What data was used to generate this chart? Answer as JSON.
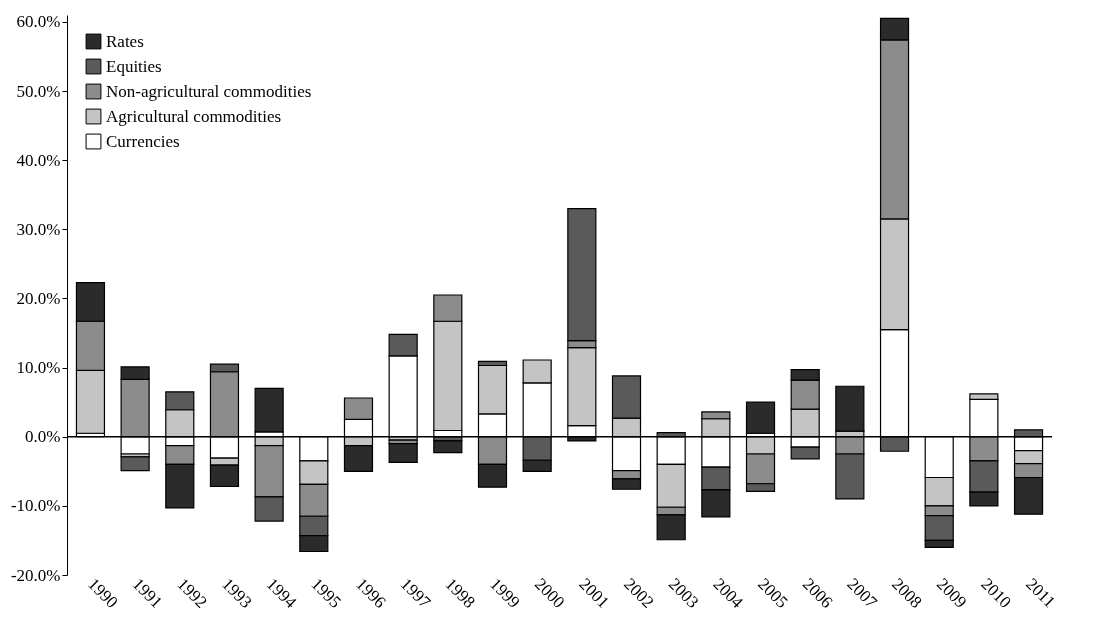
{
  "chart_data": {
    "type": "bar",
    "stacked": true,
    "categories": [
      "1990",
      "1991",
      "1992",
      "1993",
      "1994",
      "1995",
      "1996",
      "1997",
      "1998",
      "1999",
      "2000",
      "2001",
      "2002",
      "2003",
      "2004",
      "2005",
      "2006",
      "2007",
      "2008",
      "2009",
      "2010",
      "2011"
    ],
    "series": [
      {
        "name": "Currencies",
        "color": "#ffffff",
        "values": [
          0.5,
          -2.5,
          -1.3,
          -3.1,
          0.7,
          -3.5,
          2.5,
          11.7,
          0.9,
          3.3,
          7.8,
          1.6,
          -4.9,
          -4.0,
          -4.4,
          0.5,
          -1.5,
          null,
          15.5,
          -5.9,
          5.4,
          -2.0
        ]
      },
      {
        "name": "Agricultural commodities",
        "color": "#c4c4c4",
        "values": [
          9.1,
          -0.4,
          3.9,
          -1.0,
          -1.3,
          -3.4,
          -1.3,
          -0.5,
          15.8,
          7.0,
          3.3,
          11.3,
          2.7,
          -6.2,
          2.6,
          -2.5,
          4.0,
          0.8,
          16.0,
          -4.1,
          0.8,
          -1.9
        ]
      },
      {
        "name": "Non-agricultural commodities",
        "color": "#8c8c8c",
        "values": [
          7.1,
          8.3,
          -2.7,
          9.4,
          -7.4,
          -4.6,
          3.1,
          -0.5,
          3.8,
          -4.0,
          null,
          1.0,
          -1.2,
          -1.1,
          1.0,
          -4.3,
          4.2,
          -2.5,
          25.9,
          -1.4,
          -3.5,
          -2.0
        ]
      },
      {
        "name": "Equities",
        "color": "#5a5a5a",
        "values": [
          null,
          -2.0,
          2.6,
          1.1,
          -3.5,
          -2.8,
          null,
          3.1,
          -0.6,
          0.6,
          -3.4,
          19.1,
          6.1,
          0.6,
          -3.3,
          -1.1,
          -1.7,
          -6.5,
          -2.1,
          -3.6,
          -4.5,
          1.0
        ]
      },
      {
        "name": "Rates",
        "color": "#2b2b2b",
        "values": [
          5.6,
          1.8,
          -6.3,
          -3.1,
          6.3,
          -2.3,
          -3.7,
          -2.7,
          -1.7,
          -3.3,
          -1.6,
          -0.6,
          -1.5,
          -3.6,
          -3.9,
          4.5,
          1.5,
          6.5,
          3.1,
          -1.0,
          -2.0,
          -5.3
        ]
      }
    ],
    "ylim": [
      -20,
      61
    ],
    "yticks": [
      {
        "value": -20,
        "label": "-20.0%"
      },
      {
        "value": -10,
        "label": "-10.0%"
      },
      {
        "value": 0,
        "label": "0.0%"
      },
      {
        "value": 10,
        "label": "10.0%"
      },
      {
        "value": 20,
        "label": "20.0%"
      },
      {
        "value": 30,
        "label": "30.0%"
      },
      {
        "value": 40,
        "label": "40.0%"
      },
      {
        "value": 50,
        "label": "50.0%"
      },
      {
        "value": 60,
        "label": "60.0%"
      }
    ],
    "ref_lines": [
      {
        "axis": "y",
        "value": 0
      }
    ],
    "grid": false,
    "legend": "top left"
  }
}
